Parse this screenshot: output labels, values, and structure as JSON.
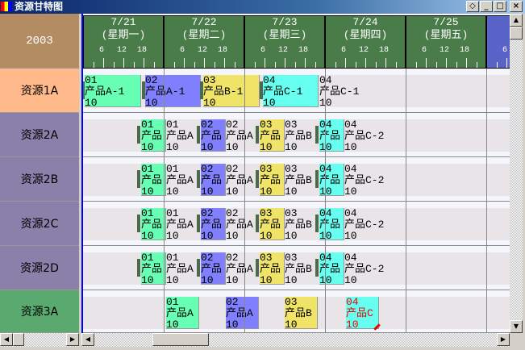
{
  "window": {
    "title": "资源甘特图",
    "buttons": [
      "◇",
      "_",
      "□",
      "×"
    ]
  },
  "year": "2003",
  "days": [
    {
      "date": "7/21",
      "weekday": "(星期一)"
    },
    {
      "date": "7/22",
      "weekday": "(星期二)"
    },
    {
      "date": "7/23",
      "weekday": "(星期三)"
    },
    {
      "date": "7/24",
      "weekday": "(星期四)"
    },
    {
      "date": "7/25",
      "weekday": "(星期五)"
    },
    {
      "date": "",
      "weekday": "("
    }
  ],
  "hours": [
    "6",
    "12",
    "18"
  ],
  "resources": [
    "资源1A",
    "资源2A",
    "资源2B",
    "资源2C",
    "资源2D",
    "资源3A"
  ],
  "colors": {
    "A1": "#66ffb3",
    "A2": "#8080ff",
    "B": "#f0e468",
    "C": "#66fff0",
    "header": "#4a7c4a",
    "year": "#b48c64",
    "res1": "#ffb98a",
    "res2": "#8a80aa",
    "res3": "#5aaa70"
  },
  "row1": {
    "tasks": [
      {
        "code": "01",
        "name": "产品A-1",
        "qty": "10"
      },
      {
        "code": "02",
        "name": "产品A-1",
        "qty": "10"
      },
      {
        "code": "03",
        "name": "产品B-1",
        "qty": "10"
      },
      {
        "code": "04",
        "name": "产品C-1",
        "qty": "10"
      }
    ],
    "trailing": {
      "code": "04",
      "name": "产品C-1",
      "qty": "10"
    }
  },
  "row2": {
    "tasks": [
      {
        "code": "01",
        "name": "产品",
        "qty": "10",
        "after": "产品A"
      },
      {
        "code": "02",
        "name": "产品",
        "qty": "10",
        "after": "产品A"
      },
      {
        "code": "03",
        "name": "产品",
        "qty": "10",
        "after": "产品B"
      },
      {
        "code": "04",
        "name": "产品",
        "qty": "10",
        "after": "产品C-2"
      }
    ]
  },
  "row3": {
    "tasks": [
      {
        "code": "01",
        "name": "产品A",
        "qty": "10"
      },
      {
        "code": "02",
        "name": "产品A",
        "qty": "10"
      },
      {
        "code": "03",
        "name": "产品B",
        "qty": "10"
      },
      {
        "code": "04",
        "name": "产品C",
        "qty": "10"
      }
    ]
  }
}
